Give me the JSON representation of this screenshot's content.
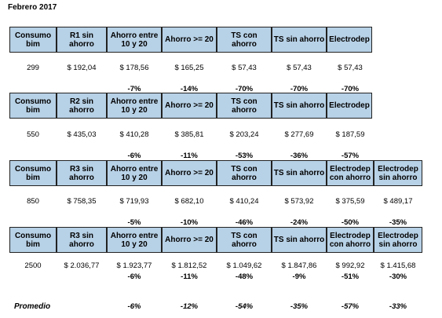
{
  "title": "Febrero 2017",
  "tables": [
    {
      "headers": [
        "Consumo bim",
        "R1 sin ahorro",
        "Ahorro entre 10 y 20",
        "Ahorro >= 20",
        "TS con ahorro",
        "TS sin ahorro",
        "Electrodep"
      ],
      "values": [
        "299",
        "$ 192,04",
        "$ 178,56",
        "$ 165,25",
        "$ 57,43",
        "$ 57,43",
        "$ 57,43"
      ],
      "percents": [
        "-7%",
        "-14%",
        "-70%",
        "-70%",
        "-70%"
      ]
    },
    {
      "headers": [
        "Consumo bim",
        "R2 sin ahorro",
        "Ahorro entre 10 y 20",
        "Ahorro >= 20",
        "TS con ahorro",
        "TS sin ahorro",
        "Electrodep"
      ],
      "values": [
        "550",
        "$ 435,03",
        "$ 410,28",
        "$ 385,81",
        "$ 203,24",
        "$ 277,69",
        "$ 187,59"
      ],
      "percents": [
        "-6%",
        "-11%",
        "-53%",
        "-36%",
        "-57%"
      ]
    },
    {
      "headers": [
        "Consumo bim",
        "R3 sin ahorro",
        "Ahorro entre 10 y 20",
        "Ahorro >= 20",
        "TS con ahorro",
        "TS sin ahorro",
        "Electrodep con ahorro",
        "Electrodep sin ahorro"
      ],
      "values": [
        "850",
        "$ 758,35",
        "$ 719,93",
        "$ 682,10",
        "$ 410,24",
        "$ 573,92",
        "$ 375,59",
        "$ 489,17"
      ],
      "percents": [
        "-5%",
        "-10%",
        "-46%",
        "-24%",
        "-50%",
        "-35%"
      ]
    },
    {
      "headers": [
        "Consumo bim",
        "R3 sin ahorro",
        "Ahorro entre 10 y 20",
        "Ahorro >= 20",
        "TS con ahorro",
        "TS sin ahorro",
        "Electrodep con ahorro",
        "Electrodep sin ahorro"
      ],
      "values": [
        "2500",
        "$ 2.036,77",
        "$ 1.923,77",
        "$ 1.812,52",
        "$ 1.049,62",
        "$ 1.847,86",
        "$ 992,92",
        "$ 1.415,68"
      ],
      "percents": [
        "-6%",
        "-11%",
        "-48%",
        "-9%",
        "-51%",
        "-30%"
      ]
    }
  ],
  "promedio": {
    "label": "Promedio",
    "values": [
      "-6%",
      "-12%",
      "-54%",
      "-35%",
      "-57%",
      "-33%"
    ]
  }
}
